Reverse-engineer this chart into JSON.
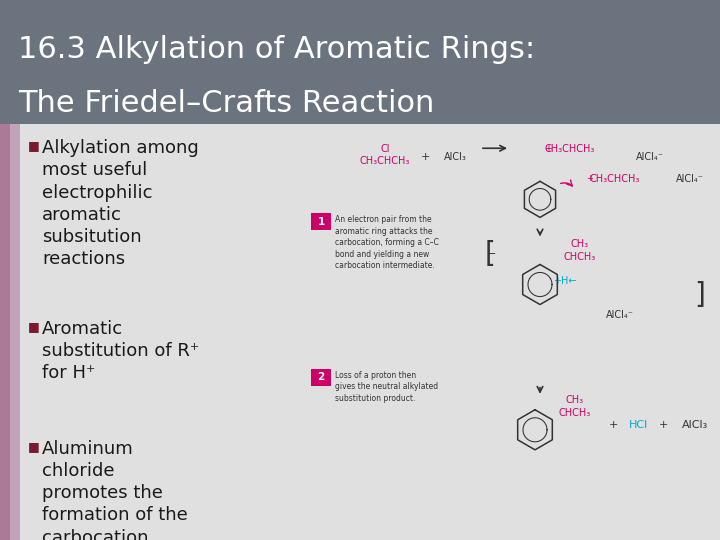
{
  "title_line1": "16.3 Alkylation of Aromatic Rings:",
  "title_line2": "The Friedel–Crafts Reaction",
  "title_bg_color": "#6b737f",
  "title_text_color": "#ffffff",
  "body_bg_color": "#e0e0e0",
  "bullet_color": "#7a1a2e",
  "bullet_symbol": "■",
  "bullets": [
    "Alkylation among\nmost useful\nelectrophilic\naromatic\nsubsitution\nreactions",
    "Aromatic\nsubstitution of R⁺\nfor H⁺",
    "Aluminum\nchloride\npromotes the\nformation of the\ncarbocation"
  ],
  "body_text_color": "#1a1a1a",
  "title_fontsize": 22,
  "bullet_fontsize": 13,
  "figsize": [
    7.2,
    5.4
  ],
  "dpi": 100,
  "pink": "#cc0066",
  "cyan": "#00aacc",
  "dark": "#333333",
  "step_box_color": "#cc0066"
}
